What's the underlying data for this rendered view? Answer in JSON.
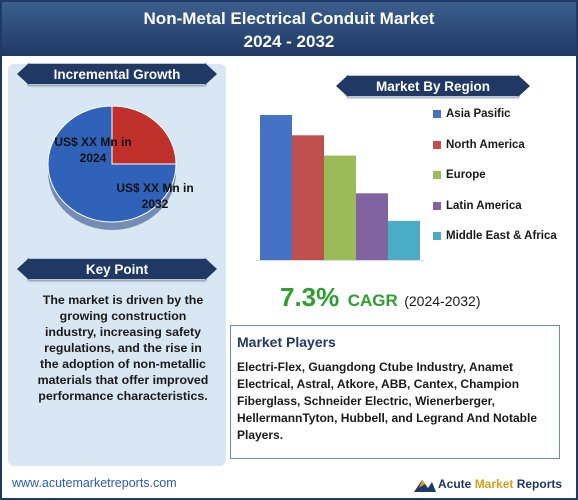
{
  "header": {
    "title_line1": "Non-Metal Electrical Conduit Market",
    "title_line2": "2024 - 2032"
  },
  "incremental_growth": {
    "heading": "Incremental Growth",
    "label_2024": "US$ XX Mn in 2024",
    "label_2032": "US$ XX Mn in 2032"
  },
  "key_point": {
    "heading": "Key Point",
    "text": "The market is driven by the growing construction industry, increasing safety regulations, and the rise in the adoption of non-metallic materials that offer improved performance characteristics."
  },
  "region": {
    "heading": "Market By Region"
  },
  "cagr": {
    "value": "7.3%",
    "label": "CAGR",
    "period": "(2024-2032)"
  },
  "players": {
    "heading": "Market Players",
    "text": "Electri-Flex, Guangdong Ctube Industry, Anamet Electrical, Astral, Atkore, ABB, Cantex, Champion Fiberglass, Schneider Electric, Wienerberger, HellermannTyton, Hubbell, and Legrand And Notable Players."
  },
  "footer": {
    "url": "www.acutemarketreports.com",
    "brand_part1": "Acute",
    "brand_part2": "Market",
    "brand_part3": "Reports"
  },
  "colors": {
    "navy": "#1f3864",
    "cagr_green": "#2e9e2e"
  },
  "chart_data": [
    {
      "type": "pie",
      "title": "Incremental Growth",
      "slices": [
        {
          "label": "US$ XX Mn in 2024",
          "value": 25,
          "color": "#c0302b"
        },
        {
          "label": "US$ XX Mn in 2032",
          "value": 75,
          "color": "#2f62b8"
        }
      ]
    },
    {
      "type": "bar",
      "title": "Market By Region",
      "categories": [
        "Asia Pasific",
        "North America",
        "Europe",
        "Latin America",
        "Middle East & Africa"
      ],
      "values": [
        100,
        86,
        72,
        46,
        27
      ],
      "colors": [
        "#4472c4",
        "#c0504d",
        "#9bbb59",
        "#8064a2",
        "#4bacc6"
      ],
      "legend_position": "right",
      "grid": false
    }
  ]
}
